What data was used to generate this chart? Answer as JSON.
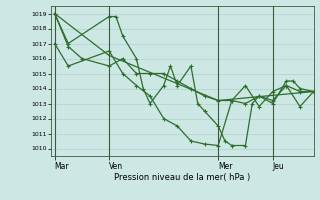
{
  "bg_color": "#cde8e4",
  "grid_color": "#a8ccc8",
  "line_color": "#2d6e2d",
  "marker_color": "#2d6e2d",
  "xlabel": "Pression niveau de la mer( hPa )",
  "ylim": [
    1009.5,
    1019.5
  ],
  "yticks": [
    1010,
    1011,
    1012,
    1013,
    1014,
    1015,
    1016,
    1017,
    1018,
    1019
  ],
  "xtick_labels": [
    "Mar",
    "Ven",
    "Mer",
    "Jeu"
  ],
  "xtick_positions": [
    0,
    8,
    24,
    32
  ],
  "vline_positions": [
    0,
    8,
    24,
    32
  ],
  "xlim": [
    -0.5,
    38
  ],
  "series1": {
    "x": [
      0,
      2,
      8,
      9,
      10,
      12,
      13,
      14,
      16,
      17,
      18,
      20,
      21,
      22,
      24,
      25,
      26,
      28,
      29,
      30,
      32,
      34,
      35,
      36,
      38
    ],
    "y": [
      1019,
      1017,
      1018.8,
      1018.8,
      1017.5,
      1016.0,
      1014.0,
      1013.0,
      1014.2,
      1015.5,
      1014.2,
      1015.5,
      1013.0,
      1012.5,
      1011.5,
      1010.5,
      1010.2,
      1010.2,
      1013.0,
      1013.5,
      1013.0,
      1014.5,
      1014.5,
      1014.0,
      1013.8
    ]
  },
  "series2": {
    "x": [
      0,
      2,
      4,
      8,
      10,
      12,
      14,
      16,
      18,
      20,
      22,
      24,
      26,
      28,
      30,
      32,
      34,
      36,
      38
    ],
    "y": [
      1019.0,
      1016.8,
      1016.0,
      1015.5,
      1016.0,
      1015.0,
      1015.0,
      1015.0,
      1014.5,
      1014.0,
      1013.5,
      1013.2,
      1013.2,
      1013.0,
      1013.5,
      1013.2,
      1014.2,
      1013.8,
      1013.8
    ]
  },
  "series3": {
    "x": [
      0,
      2,
      8,
      10,
      12,
      14,
      16,
      18,
      20,
      22,
      24,
      26,
      28,
      30,
      32,
      34,
      36,
      38
    ],
    "y": [
      1017.0,
      1015.5,
      1016.5,
      1015.0,
      1014.2,
      1013.5,
      1012.0,
      1011.5,
      1010.5,
      1010.3,
      1010.2,
      1013.2,
      1014.2,
      1012.8,
      1013.8,
      1014.2,
      1012.8,
      1013.8
    ]
  },
  "series4": {
    "x": [
      0,
      8,
      24,
      38
    ],
    "y": [
      1019.0,
      1016.2,
      1013.2,
      1013.8
    ]
  }
}
